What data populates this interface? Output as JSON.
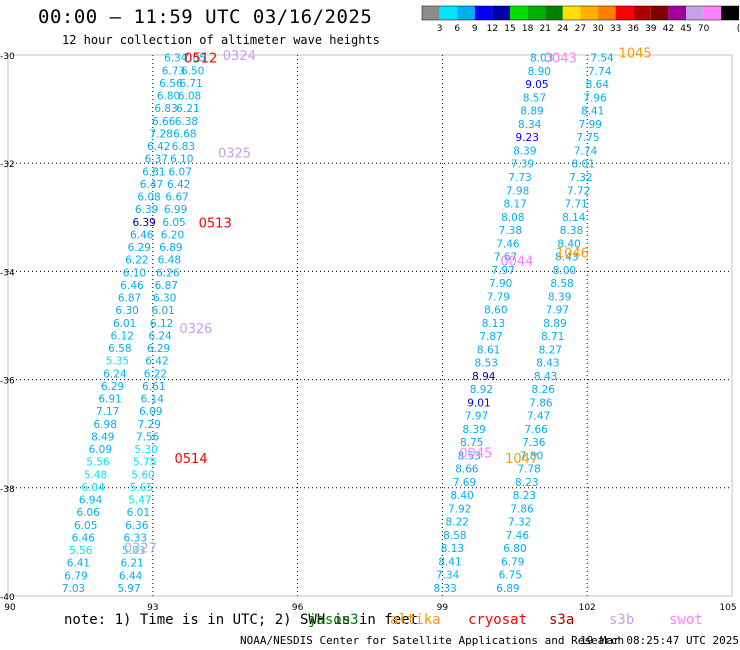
{
  "title": "00:00 – 11:59 UTC 03/16/2025",
  "subtitle": "12 hour collection of altimeter wave heights",
  "color_scale": {
    "unit": "(ft)",
    "labels": [
      "3",
      "6",
      "9",
      "12",
      "15",
      "18",
      "21",
      "24",
      "27",
      "30",
      "33",
      "36",
      "39",
      "42",
      "45",
      "70"
    ],
    "colors": [
      "#8c8c8c",
      "#00e5ff",
      "#00b0f0",
      "#0000ff",
      "#0000a8",
      "#00e000",
      "#00b000",
      "#008000",
      "#ffe000",
      "#ffb000",
      "#ff8000",
      "#ff0000",
      "#b00000",
      "#800000",
      "#a000a0",
      "#c8a0e8",
      "#ff80ff",
      "#000000"
    ]
  },
  "axes": {
    "lon_ticks": [
      "90",
      "93",
      "96",
      "99",
      "102",
      "105"
    ],
    "lat_ticks": [
      "-30",
      "-32",
      "-34",
      "-36",
      "-38",
      "-40"
    ],
    "lon_range": [
      90,
      105
    ],
    "lat_range": [
      -30,
      -40
    ]
  },
  "note": {
    "prefix": "note: 1) Time is in UTC; 2) SWH is in feet",
    "satellites": [
      {
        "name": "jason3",
        "color": "#008000"
      },
      {
        "name": "altika",
        "color": "#ff9900"
      },
      {
        "name": "cryosat",
        "color": "#ff0000"
      },
      {
        "name": "s3a",
        "color": "#b00000"
      },
      {
        "name": "s3b",
        "color": "#c8a0e8"
      },
      {
        "name": "swot",
        "color": "#ff80ff"
      }
    ]
  },
  "credit": "NOAA/NESDIS Center for Satellite Applications and Research",
  "timestamp": "19 Mar 08:25:47 UTC 2025",
  "time_labels": [
    {
      "text": "0512",
      "lon": 93.65,
      "lat": -30.05,
      "color": "#ff0000"
    },
    {
      "text": "0324",
      "lon": 94.45,
      "lat": -30.0,
      "color": "#c8a0e8"
    },
    {
      "text": "0325",
      "lon": 94.35,
      "lat": -31.8,
      "color": "#c8a0e8"
    },
    {
      "text": "0513",
      "lon": 93.95,
      "lat": -33.1,
      "color": "#ff0000"
    },
    {
      "text": "0326",
      "lon": 93.55,
      "lat": -35.05,
      "color": "#c8a0e8"
    },
    {
      "text": "0514",
      "lon": 93.45,
      "lat": -37.45,
      "color": "#ff0000"
    },
    {
      "text": "0327",
      "lon": 92.4,
      "lat": -39.1,
      "color": "#c8a0e8"
    },
    {
      "text": "0043",
      "lon": 101.1,
      "lat": -30.05,
      "color": "#ff80ff"
    },
    {
      "text": "1045",
      "lon": 102.65,
      "lat": -29.95,
      "color": "#ff9900"
    },
    {
      "text": "0044",
      "lon": 100.2,
      "lat": -33.8,
      "color": "#ff80ff"
    },
    {
      "text": "1046",
      "lon": 101.35,
      "lat": -33.65,
      "color": "#ff9900"
    },
    {
      "text": "0045",
      "lon": 99.35,
      "lat": -37.35,
      "color": "#ff80ff"
    },
    {
      "text": "1047",
      "lon": 100.3,
      "lat": -37.45,
      "color": "#ff9900"
    }
  ],
  "tracks": [
    {
      "name": "track-a",
      "start": [
        93.72,
        -30.05
      ],
      "end": [
        91.6,
        -39.85
      ],
      "values": [
        "6.34",
        "6.73",
        "6.56",
        "6.80",
        "6.83",
        "6.66",
        "7.28",
        "6.42",
        "6.37",
        "6.81",
        "6.47",
        "6.08",
        "6.39",
        "6.39",
        "6.46",
        "6.29",
        "6.22",
        "6.10",
        "6.46",
        "6.87",
        "6.30",
        "6.01",
        "6.12",
        "6.58",
        "5.35",
        "6.24",
        "6.29",
        "6.91",
        "7.17",
        "6.98",
        "8.49",
        "6.09",
        "5.56",
        "5.48",
        "6.04",
        "6.94",
        "6.06",
        "6.05",
        "6.46",
        "5.56",
        "6.41",
        "6.79",
        "7.03"
      ],
      "colors": [
        "#00b0f0",
        "#00b0f0",
        "#00b0f0",
        "#00b0f0",
        "#00b0f0",
        "#00b0f0",
        "#00b0f0",
        "#00b0f0",
        "#00b0f0",
        "#00b0f0",
        "#00b0f0",
        "#00b0f0",
        "#00b0f0",
        "#0000a8",
        "#00b0f0",
        "#00b0f0",
        "#00b0f0",
        "#00b0f0",
        "#00b0f0",
        "#00b0f0",
        "#00b0f0",
        "#00b0f0",
        "#00b0f0",
        "#00b0f0",
        "#00e5ff",
        "#00b0f0",
        "#00b0f0",
        "#00b0f0",
        "#00b0f0",
        "#00b0f0",
        "#00b0f0",
        "#00b0f0",
        "#00e5ff",
        "#00e5ff",
        "#00e5ff",
        "#00b0f0",
        "#00b0f0",
        "#00b0f0",
        "#00b0f0",
        "#00e5ff",
        "#00b0f0",
        "#00b0f0",
        "#00b0f0"
      ]
    },
    {
      "name": "track-b",
      "start": [
        94.1,
        -30.05
      ],
      "end": [
        92.75,
        -39.85
      ],
      "values": [
        "7.05",
        "6.50",
        "6.71",
        "6.08",
        "6.21",
        "6.38",
        "6.68",
        "6.83",
        "6.10",
        "6.07",
        "6.42",
        "6.67",
        "6.99",
        "6.05",
        "6.20",
        "6.89",
        "6.48",
        "6.26",
        "6.87",
        "6.30",
        "6.01",
        "6.12",
        "6.24",
        "6.29",
        "6.42",
        "6.22",
        "6.61",
        "6.14",
        "6.09",
        "7.29",
        "7.56",
        "5.30",
        "5.75",
        "5.60",
        "5.65",
        "5.47",
        "6.01",
        "6.36",
        "6.33",
        "5.83",
        "6.21",
        "6.44",
        "5.97"
      ],
      "colors": [
        "#00b0f0",
        "#00b0f0",
        "#00b0f0",
        "#00b0f0",
        "#00b0f0",
        "#00b0f0",
        "#00b0f0",
        "#00b0f0",
        "#00b0f0",
        "#00b0f0",
        "#00b0f0",
        "#00b0f0",
        "#00b0f0",
        "#00b0f0",
        "#00b0f0",
        "#00b0f0",
        "#00b0f0",
        "#00b0f0",
        "#00b0f0",
        "#00b0f0",
        "#00b0f0",
        "#00b0f0",
        "#00b0f0",
        "#00b0f0",
        "#00b0f0",
        "#00b0f0",
        "#00b0f0",
        "#00b0f0",
        "#00b0f0",
        "#00b0f0",
        "#00b0f0",
        "#00e5ff",
        "#00e5ff",
        "#00e5ff",
        "#00e5ff",
        "#00e5ff",
        "#00b0f0",
        "#00b0f0",
        "#00b0f0",
        "#00e5ff",
        "#00b0f0",
        "#00b0f0",
        "#00b0f0"
      ]
    },
    {
      "name": "track-c",
      "start": [
        101.3,
        -30.05
      ],
      "end": [
        99.3,
        -39.85
      ],
      "values": [
        "8.03",
        "8.90",
        "9.05",
        "8.57",
        "8.89",
        "8.34",
        "9.23",
        "8.39",
        "7.39",
        "7.73",
        "7.98",
        "8.17",
        "8.08",
        "7.38",
        "7.46",
        "7.67",
        "7.97",
        "7.90",
        "7.79",
        "8.60",
        "8.13",
        "7.87",
        "8.61",
        "8.53",
        "8.94",
        "8.92",
        "9.01",
        "7.97",
        "8.39",
        "8.75",
        "8.53",
        "8.66",
        "7.69",
        "8.40",
        "7.92",
        "8.22",
        "8.58",
        "8.13",
        "8.41",
        "7.34",
        "8.33"
      ],
      "colors": [
        "#00b0f0",
        "#00b0f0",
        "#0000ff",
        "#00b0f0",
        "#00b0f0",
        "#00b0f0",
        "#0000ff",
        "#00b0f0",
        "#00b0f0",
        "#00b0f0",
        "#00b0f0",
        "#00b0f0",
        "#00b0f0",
        "#00b0f0",
        "#00b0f0",
        "#00b0f0",
        "#00b0f0",
        "#00b0f0",
        "#00b0f0",
        "#00b0f0",
        "#00b0f0",
        "#00b0f0",
        "#00b0f0",
        "#00b0f0",
        "#0000a8",
        "#00b0f0",
        "#0000ff",
        "#00b0f0",
        "#00b0f0",
        "#00b0f0",
        "#00b0f0",
        "#00b0f0",
        "#00b0f0",
        "#00b0f0",
        "#00b0f0",
        "#00b0f0",
        "#00b0f0",
        "#00b0f0",
        "#00b0f0",
        "#00b0f0",
        "#00b0f0"
      ]
    },
    {
      "name": "track-d",
      "start": [
        102.55,
        -30.05
      ],
      "end": [
        100.6,
        -39.85
      ],
      "values": [
        "7.54",
        "7.74",
        "8.64",
        "7.96",
        "8.41",
        "7.99",
        "7.75",
        "7.74",
        "8.01",
        "7.32",
        "7.72",
        "7.71",
        "8.14",
        "8.38",
        "8.40",
        "8.43",
        "8.00",
        "8.58",
        "8.39",
        "7.97",
        "8.89",
        "8.71",
        "8.27",
        "8.43",
        "8.43",
        "8.26",
        "7.86",
        "7.47",
        "7.66",
        "7.36",
        "7.80",
        "7.78",
        "8.23",
        "8.23",
        "7.86",
        "7.32",
        "7.46",
        "6.80",
        "6.79",
        "6.75",
        "6.89"
      ],
      "colors": [
        "#00b0f0",
        "#00b0f0",
        "#00b0f0",
        "#00b0f0",
        "#00b0f0",
        "#00b0f0",
        "#00b0f0",
        "#00b0f0",
        "#00b0f0",
        "#00b0f0",
        "#00b0f0",
        "#00b0f0",
        "#00b0f0",
        "#00b0f0",
        "#00b0f0",
        "#00b0f0",
        "#00b0f0",
        "#00b0f0",
        "#00b0f0",
        "#00b0f0",
        "#00b0f0",
        "#00b0f0",
        "#00b0f0",
        "#00b0f0",
        "#00b0f0",
        "#00b0f0",
        "#00b0f0",
        "#00b0f0",
        "#00b0f0",
        "#00b0f0",
        "#00b0f0",
        "#00b0f0",
        "#00b0f0",
        "#00b0f0",
        "#00b0f0",
        "#00b0f0",
        "#00b0f0",
        "#00b0f0",
        "#00b0f0",
        "#00b0f0",
        "#00b0f0"
      ]
    }
  ]
}
